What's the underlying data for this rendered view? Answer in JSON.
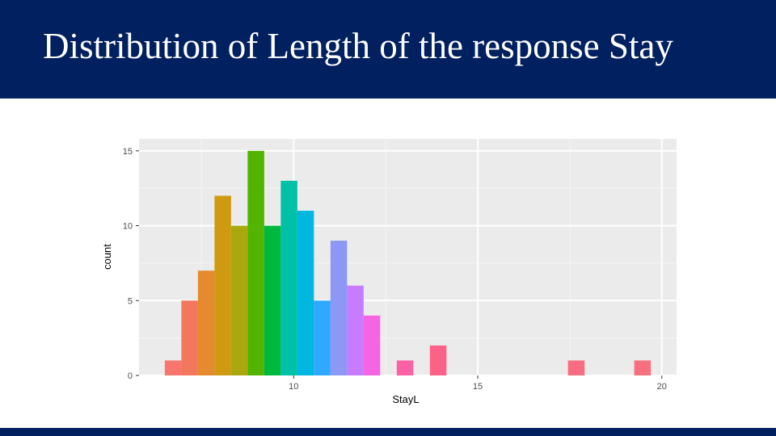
{
  "slide": {
    "title": "Distribution of Length of the response Stay"
  },
  "colors": {
    "header_bg": "#002060",
    "title_text": "#ffffff",
    "panel_bg": "#ebebeb",
    "grid": "#ffffff"
  },
  "chart_data": {
    "type": "bar",
    "subtype": "histogram",
    "title": "",
    "xlabel": "StayL",
    "ylabel": "count",
    "xlim": [
      5.8,
      20.4
    ],
    "ylim": [
      0,
      15.8
    ],
    "x_ticks": [
      10,
      15,
      20
    ],
    "y_ticks": [
      0,
      5,
      10,
      15
    ],
    "grid": true,
    "legend": "none",
    "bin_width": 0.45,
    "bins": [
      {
        "start": 6.5,
        "end": 6.95,
        "count": 1,
        "color": "#f8766d"
      },
      {
        "start": 6.95,
        "end": 7.4,
        "count": 5,
        "color": "#f2775c"
      },
      {
        "start": 7.4,
        "end": 7.85,
        "count": 7,
        "color": "#e58a2e"
      },
      {
        "start": 7.85,
        "end": 8.3,
        "count": 12,
        "color": "#cf9a12"
      },
      {
        "start": 8.3,
        "end": 8.75,
        "count": 10,
        "color": "#a9a80e"
      },
      {
        "start": 8.75,
        "end": 9.2,
        "count": 15,
        "color": "#53b400"
      },
      {
        "start": 9.2,
        "end": 9.65,
        "count": 10,
        "color": "#00b83e"
      },
      {
        "start": 9.65,
        "end": 10.1,
        "count": 13,
        "color": "#00c1a8"
      },
      {
        "start": 10.1,
        "end": 10.55,
        "count": 11,
        "color": "#00b7e0"
      },
      {
        "start": 10.55,
        "end": 11.0,
        "count": 5,
        "color": "#2fa8ff"
      },
      {
        "start": 11.0,
        "end": 11.45,
        "count": 9,
        "color": "#8c97f6"
      },
      {
        "start": 11.45,
        "end": 11.9,
        "count": 6,
        "color": "#c77cff"
      },
      {
        "start": 11.9,
        "end": 12.35,
        "count": 4,
        "color": "#f564e3"
      },
      {
        "start": 12.8,
        "end": 13.25,
        "count": 1,
        "color": "#fb61a4"
      },
      {
        "start": 13.7,
        "end": 14.15,
        "count": 2,
        "color": "#fc6187"
      },
      {
        "start": 17.45,
        "end": 17.9,
        "count": 1,
        "color": "#fb6b82"
      },
      {
        "start": 19.25,
        "end": 19.7,
        "count": 1,
        "color": "#f86f80"
      }
    ]
  }
}
